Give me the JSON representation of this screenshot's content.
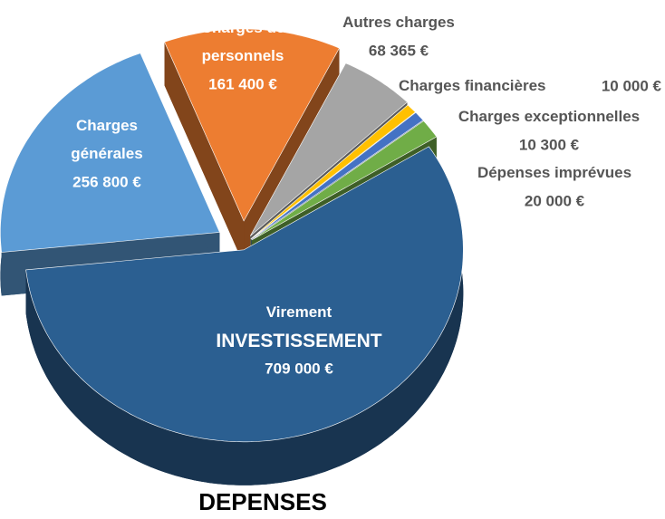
{
  "chart_data": {
    "type": "pie3d",
    "title": "DEPENSES",
    "categories": [
      "Charges générales",
      "Charges de personnels",
      "Autres charges",
      "Charges financières",
      "Charges exceptionnelles",
      "Dépenses imprévues",
      "Virement INVESTISSEMENT"
    ],
    "values": [
      256800,
      161400,
      68365,
      10000,
      10300,
      20000,
      709000
    ],
    "value_labels": [
      "256 800 €",
      "161 400 €",
      "68 365 €",
      "10 000 €",
      "10 300 €",
      "20 000 €",
      "709 000 €"
    ],
    "colors": [
      "#5b9bd5",
      "#ed7d31",
      "#a5a5a5",
      "#ffc000",
      "#4472c4",
      "#70ad47",
      "#2b5f91"
    ]
  }
}
